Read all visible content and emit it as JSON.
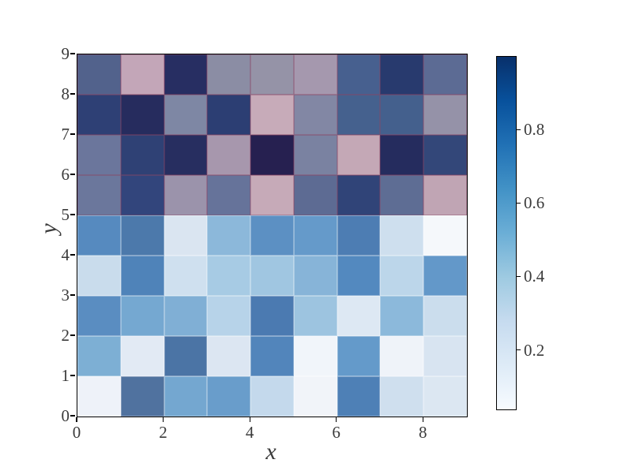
{
  "chart_data": {
    "type": "heatmap",
    "title": "",
    "xlabel": "x",
    "ylabel": "y",
    "x_range": [
      0,
      9
    ],
    "y_range": [
      0,
      9
    ],
    "n_cols": 9,
    "n_rows": 9,
    "x_tick_labels": [
      "0",
      "2",
      "4",
      "6",
      "8"
    ],
    "x_tick_values": [
      0,
      2,
      4,
      6,
      8
    ],
    "y_tick_labels": [
      "0",
      "1",
      "2",
      "3",
      "4",
      "5",
      "6",
      "7",
      "8",
      "9"
    ],
    "y_tick_values": [
      0,
      1,
      2,
      3,
      4,
      5,
      6,
      7,
      8,
      9
    ],
    "rows_order_note": "cell_colors[0] is the top row of cells (y from 8 to 9); cell_colors[8] is the bottom row (y from 0 to 1); upper four rows (y>=5) are blended with a pink/mauve overlay and dark-red cell edges, lower five rows follow the Blues colorbar",
    "cell_colors": [
      [
        "#52628c",
        "#c3a6b8",
        "#272e62",
        "#8b8da4",
        "#9593a7",
        "#a598ae",
        "#47608f",
        "#283a6e",
        "#5c6b94"
      ],
      [
        "#2e4075",
        "#262c5e",
        "#7e87a4",
        "#2c3e73",
        "#c7abb9",
        "#8287a4",
        "#45618e",
        "#44608d",
        "#9592a8"
      ],
      [
        "#6b769c",
        "#2f4175",
        "#272e60",
        "#a797ad",
        "#262050",
        "#7a82a1",
        "#c4a8b6",
        "#252c5e",
        "#334779"
      ],
      [
        "#6b779c",
        "#32457c",
        "#9b93ab",
        "#66739a",
        "#c6aab8",
        "#5d6b93",
        "#304478",
        "#5e6d94",
        "#c0a5b4"
      ],
      [
        "#568abf",
        "#4c79ab",
        "#dae5f1",
        "#8cb8da",
        "#5c90c3",
        "#659aca",
        "#4d7db3",
        "#cedfee",
        "#f5f8fb"
      ],
      [
        "#c9dcec",
        "#4f83b9",
        "#cfe0ef",
        "#a7cbe4",
        "#a0c6e1",
        "#87b4d8",
        "#5389bf",
        "#bcd6ea",
        "#6398c9"
      ],
      [
        "#5a8dc1",
        "#75a8d1",
        "#80afd5",
        "#b7d3e9",
        "#4b7ab1",
        "#9dc4e0",
        "#dde8f3",
        "#8cb9db",
        "#cbdded"
      ],
      [
        "#7dafd4",
        "#e2eaf4",
        "#4b74a5",
        "#dce6f2",
        "#5285bb",
        "#f1f5fa",
        "#649aca",
        "#eff3f9",
        "#d8e4f1"
      ],
      [
        "#eef2f9",
        "#50729f",
        "#74a7d0",
        "#699dcb",
        "#c4d9ec",
        "#f1f4f9",
        "#4e80b6",
        "#cfdfee",
        "#dce7f2"
      ]
    ],
    "values_estimated": [
      [
        null,
        null,
        null,
        null,
        null,
        null,
        null,
        null,
        null
      ],
      [
        null,
        null,
        null,
        null,
        null,
        null,
        null,
        null,
        null
      ],
      [
        null,
        null,
        null,
        null,
        null,
        null,
        null,
        null,
        null
      ],
      [
        null,
        null,
        null,
        null,
        null,
        null,
        null,
        null,
        null
      ],
      [
        0.66,
        0.73,
        0.17,
        0.45,
        0.63,
        0.6,
        0.72,
        0.24,
        0.06
      ],
      [
        0.27,
        0.7,
        0.23,
        0.36,
        0.38,
        0.46,
        0.68,
        0.3,
        0.61
      ],
      [
        0.65,
        0.53,
        0.49,
        0.32,
        0.73,
        0.39,
        0.15,
        0.45,
        0.26
      ],
      [
        0.5,
        0.12,
        0.76,
        0.16,
        0.68,
        0.07,
        0.6,
        0.08,
        0.18
      ],
      [
        0.09,
        0.78,
        0.53,
        0.58,
        0.28,
        0.07,
        0.71,
        0.24,
        0.16
      ]
    ],
    "colorbar": {
      "tick_labels": [
        "0.8",
        "0.6",
        "0.4",
        "0.2"
      ],
      "tick_values": [
        0.8,
        0.6,
        0.4,
        0.2
      ],
      "vmin": 0.04,
      "vmax": 1.0,
      "cmap": "Blues",
      "gradient_stops_bottom_to_top": [
        "#f7fbff",
        "#deebf7",
        "#c6dbef",
        "#9ecae1",
        "#6baed6",
        "#4292c6",
        "#2171b5",
        "#08519c",
        "#08306b"
      ]
    }
  },
  "style": {
    "background": "#ffffff",
    "spine_color": "#000000",
    "tick_color": "#000000",
    "label_color": "#3b3b3b",
    "grid_edge_top": "rgba(140,70,100,0.55)",
    "grid_edge_bottom": "rgba(255,255,255,0.45)"
  }
}
